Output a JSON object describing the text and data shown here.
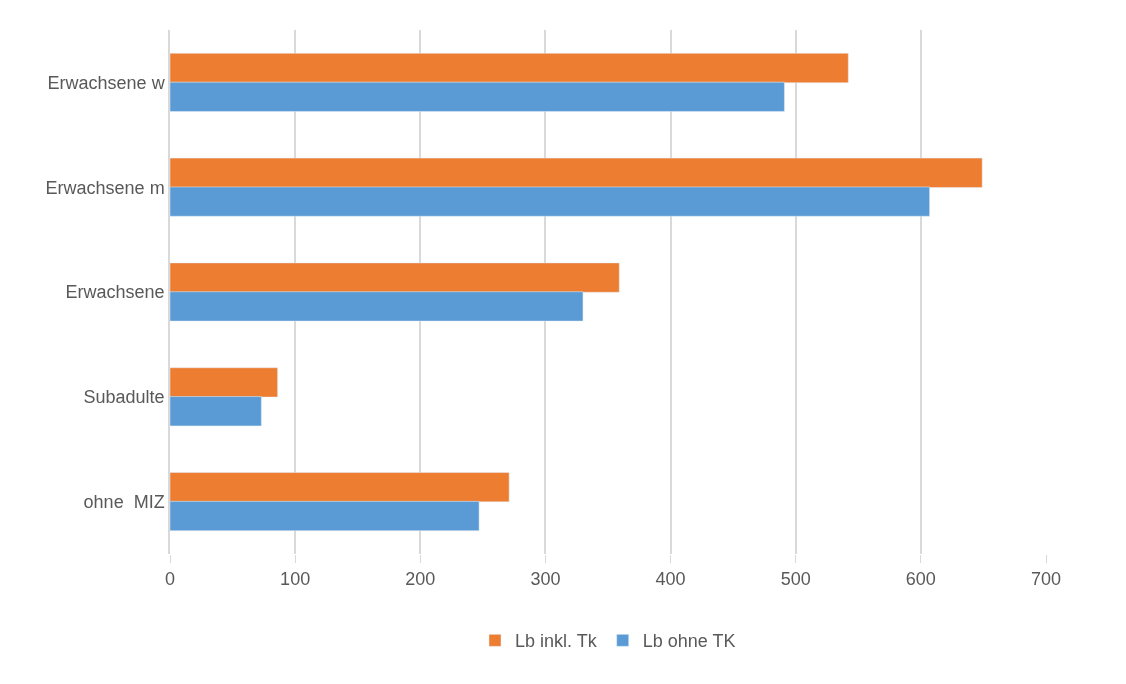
{
  "chart_data": {
    "type": "bar",
    "orientation": "horizontal",
    "categories": [
      "Erwachsene w",
      "Erwachsene m",
      "Erwachsene",
      "Subadulte",
      "ohne  MIZ"
    ],
    "series": [
      {
        "name": "Lb inkl. Tk",
        "color": "#ed7d31",
        "values": [
          542,
          649,
          359,
          86,
          271
        ]
      },
      {
        "name": "Lb ohne TK",
        "color": "#5b9bd5",
        "values": [
          491,
          607,
          330,
          73,
          247
        ]
      }
    ],
    "xlim": [
      0,
      700
    ],
    "xticks": [
      0,
      100,
      200,
      300,
      400,
      500,
      600,
      700
    ],
    "grid": "x",
    "legend": "bottom"
  }
}
